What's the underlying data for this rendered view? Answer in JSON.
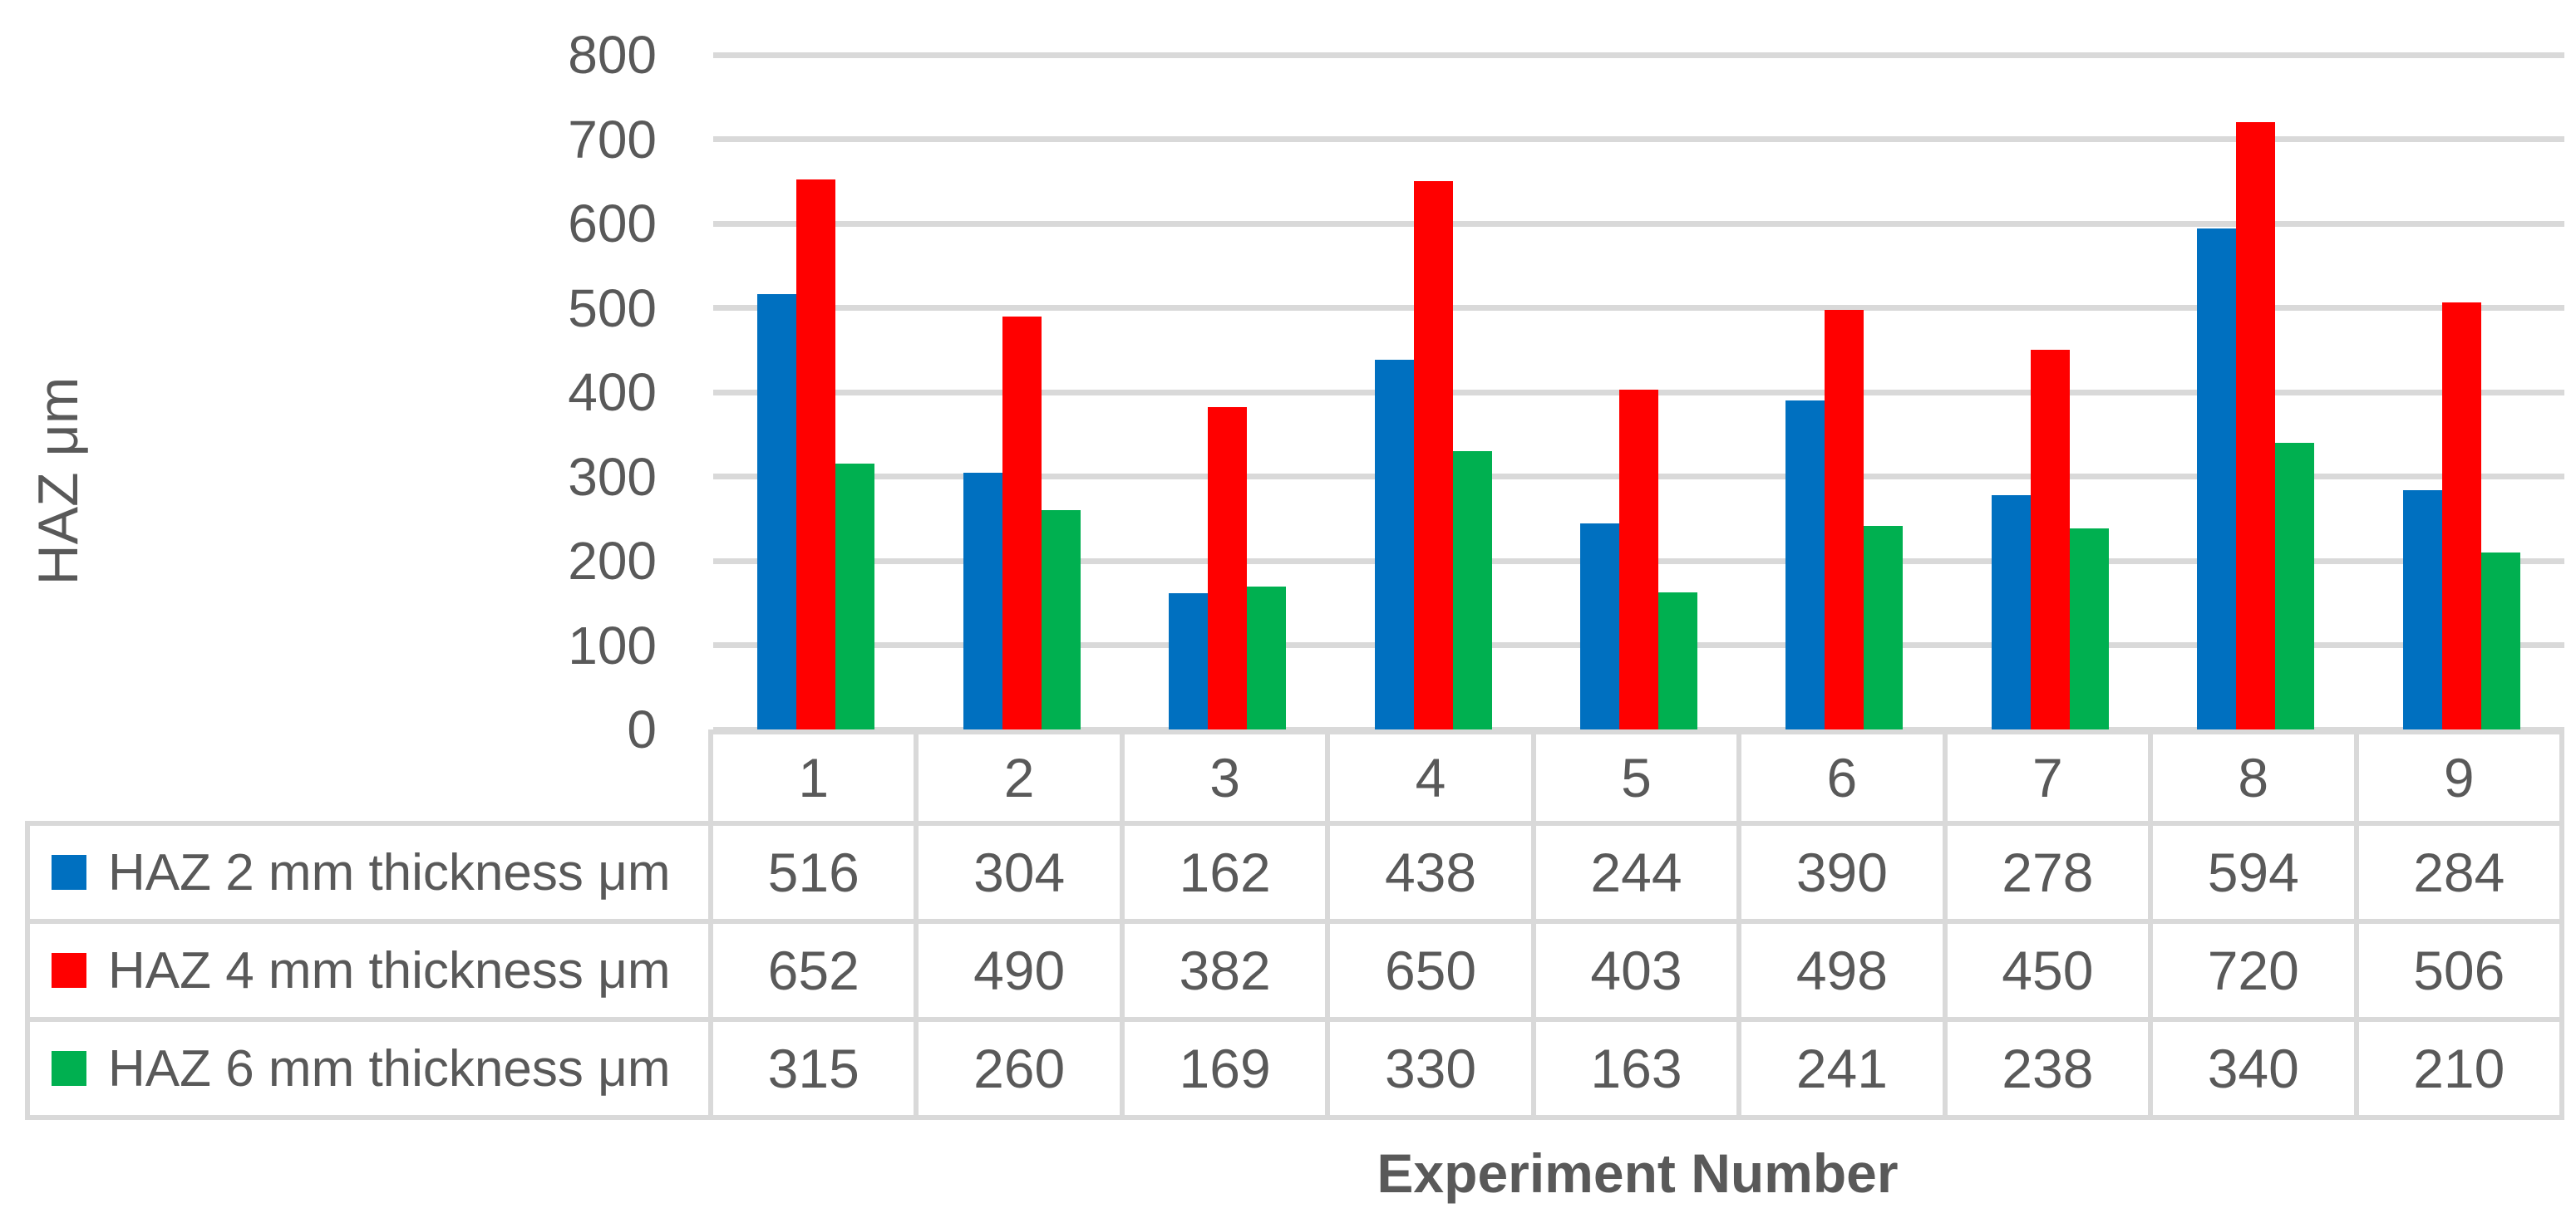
{
  "chart_data": {
    "type": "bar",
    "title": "",
    "xlabel": "Experiment Number",
    "ylabel": "HAZ μm",
    "categories": [
      "1",
      "2",
      "3",
      "4",
      "5",
      "6",
      "7",
      "8",
      "9"
    ],
    "series": [
      {
        "name": "HAZ 2 mm thickness μm",
        "color": "#0070C0",
        "values": [
          516,
          304,
          162,
          438,
          244,
          390,
          278,
          594,
          284
        ]
      },
      {
        "name": "HAZ 4 mm thickness μm",
        "color": "#FF0000",
        "values": [
          652,
          490,
          382,
          650,
          403,
          498,
          450,
          720,
          506
        ]
      },
      {
        "name": "HAZ 6 mm thickness μm",
        "color": "#00B050",
        "values": [
          315,
          260,
          169,
          330,
          163,
          241,
          238,
          340,
          210
        ]
      }
    ],
    "ylim": [
      0,
      800
    ],
    "y_ticks": [
      800,
      700,
      600,
      500,
      400,
      300,
      200,
      100,
      0
    ],
    "grid": "horizontal",
    "legend_position": "table-left-column",
    "colors": {
      "grid": "#D9D9D9",
      "text": "#595959",
      "background": "#FFFFFF"
    }
  }
}
